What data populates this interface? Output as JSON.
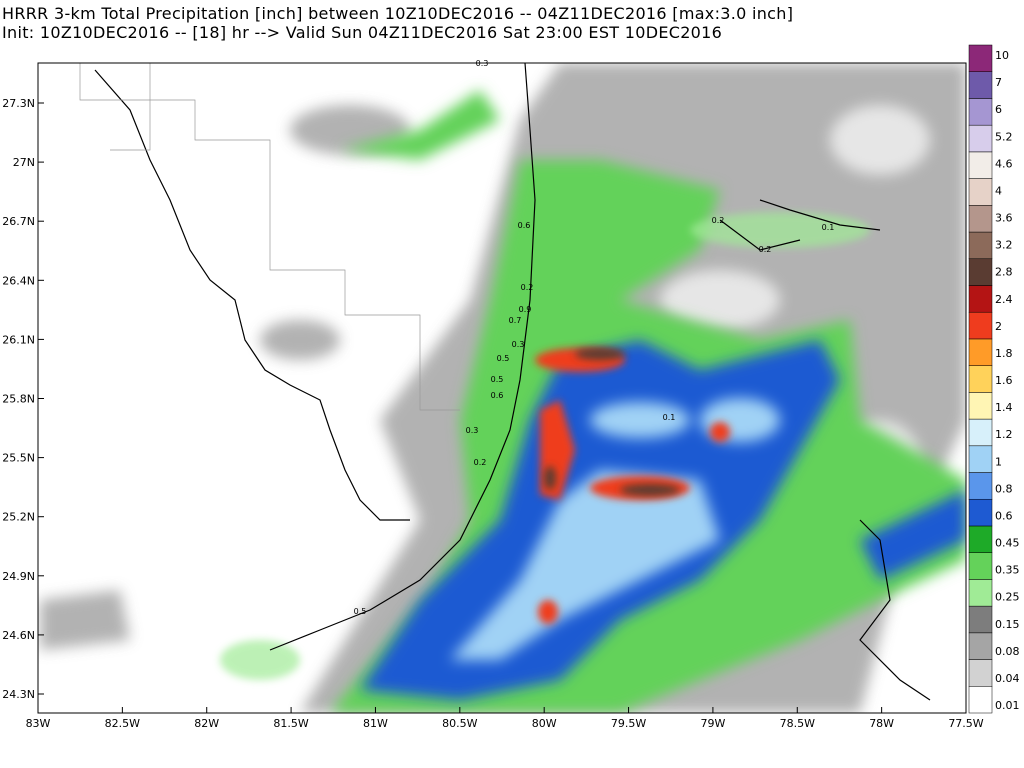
{
  "header": {
    "line1": "HRRR 3-km Total Precipitation [inch]   between 10Z10DEC2016 -- 04Z11DEC2016   [max:3.0 inch]",
    "line2": "Init: 10Z10DEC2016 -- [18] hr --> Valid Sun 04Z11DEC2016     Sat 23:00 EST 10DEC2016"
  },
  "map": {
    "x_labels": [
      "83W",
      "82.5W",
      "82W",
      "81.5W",
      "81W",
      "80.5W",
      "80W",
      "79.5W",
      "79W",
      "78.5W",
      "78W",
      "77.5W"
    ],
    "y_labels": [
      "27.3N",
      "27N",
      "26.7N",
      "26.4N",
      "26.1N",
      "25.8N",
      "25.5N",
      "25.2N",
      "24.9N",
      "24.6N",
      "24.3N"
    ],
    "contour_labels": [
      "0.3",
      "0.6",
      "0.2",
      "0.9",
      "0.7",
      "0.3",
      "0.5",
      "0.5",
      "0.6",
      "0.3",
      "0.2",
      "0.1",
      "0.2",
      "0.1",
      "0.2",
      "0.5"
    ]
  },
  "colorbar": {
    "labels": [
      "0.01",
      "0.04",
      "0.08",
      "0.15",
      "0.25",
      "0.35",
      "0.45",
      "0.6",
      "0.8",
      "1",
      "1.2",
      "1.4",
      "1.6",
      "1.8",
      "2",
      "2.4",
      "2.8",
      "3.2",
      "3.6",
      "4",
      "4.6",
      "5.2",
      "6",
      "7",
      "10"
    ],
    "colors": [
      "#ffffff",
      "#d2d2d2",
      "#a5a5a5",
      "#7d7d7d",
      "#a0eb96",
      "#64d25a",
      "#1eaa28",
      "#1e5ad2",
      "#5a96eb",
      "#a0d2f5",
      "#d7f0fa",
      "#fff5b4",
      "#ffd25a",
      "#ff9b28",
      "#ef3c1e",
      "#b41414",
      "#5a3c32",
      "#8c6a5a",
      "#b4968c",
      "#e6d2c8",
      "#f2ede8",
      "#d7cdeb",
      "#a596d2",
      "#6e5aaa",
      "#8c2878"
    ]
  }
}
